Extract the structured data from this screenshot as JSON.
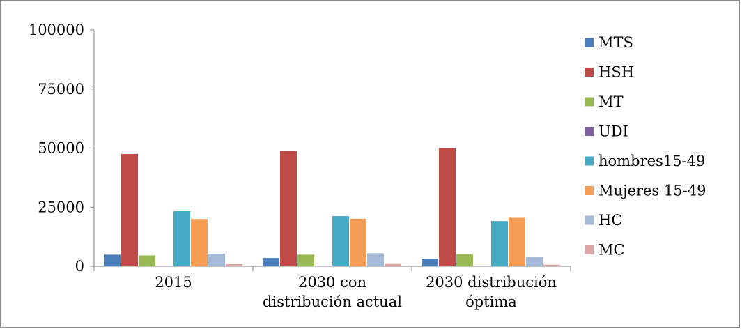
{
  "chart_data": {
    "type": "bar",
    "categories": [
      [
        "2015"
      ],
      [
        "2030 con",
        "distribución actual"
      ],
      [
        "2030 distribución",
        "óptima"
      ]
    ],
    "series": [
      {
        "name": "MTS",
        "color": "#4a7ebb",
        "values": [
          4900,
          3500,
          3200
        ]
      },
      {
        "name": "HSH",
        "color": "#be4b48",
        "values": [
          47500,
          48800,
          50000
        ]
      },
      {
        "name": "MT",
        "color": "#98b954",
        "values": [
          4600,
          4900,
          5100
        ]
      },
      {
        "name": "UDI",
        "color": "#7d60a0",
        "values": [
          200,
          200,
          150
        ]
      },
      {
        "name": "hombres15-49",
        "color": "#46aac5",
        "values": [
          23300,
          21200,
          19100
        ]
      },
      {
        "name": "Mujeres 15-49",
        "color": "#f59d56",
        "values": [
          20000,
          20100,
          20500
        ]
      },
      {
        "name": "HC",
        "color": "#a5b9d9",
        "values": [
          5300,
          5500,
          4000
        ]
      },
      {
        "name": "MC",
        "color": "#dba6a5",
        "values": [
          900,
          1000,
          700
        ]
      }
    ],
    "ylim": [
      0,
      100000
    ],
    "yticks": [
      0,
      25000,
      50000,
      75000,
      100000
    ],
    "ytick_labels": [
      "0",
      "25000",
      "50000",
      "75000",
      "100000"
    ],
    "grid": false,
    "legend_position": "right"
  }
}
